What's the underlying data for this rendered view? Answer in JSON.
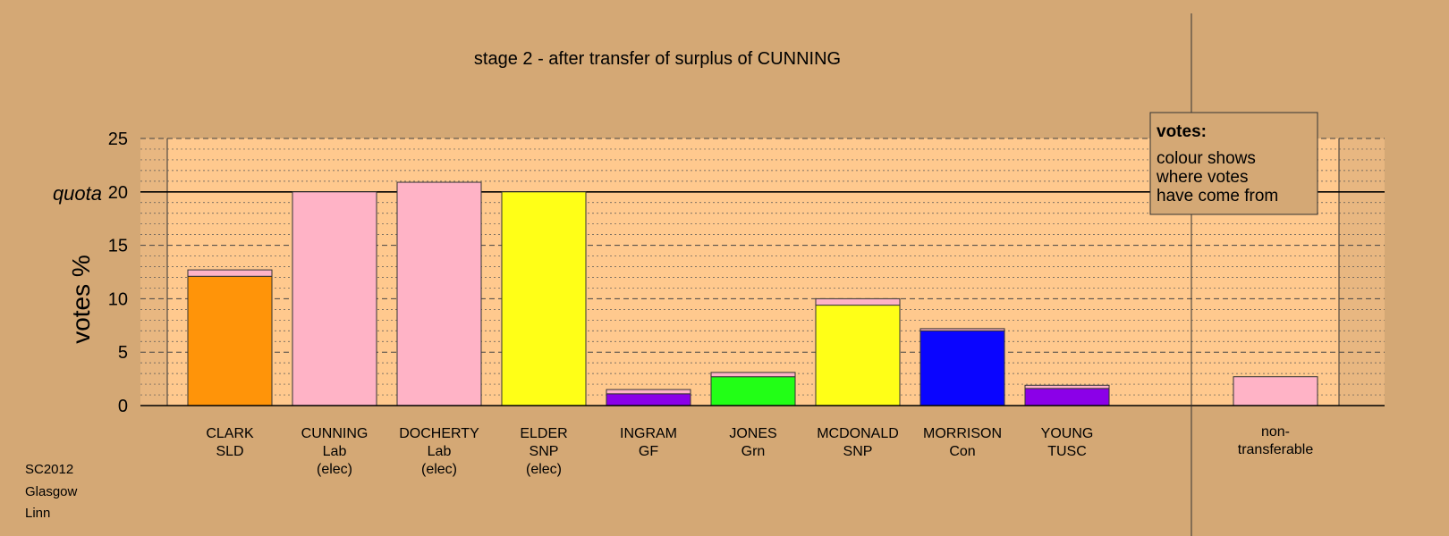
{
  "chart_data": {
    "type": "bar",
    "title": "stage 2 - after transfer of surplus of CUNNING",
    "ylabel": "votes %",
    "ylim": [
      0,
      25
    ],
    "yticks": [
      0,
      5,
      10,
      15,
      20,
      25
    ],
    "quota": {
      "value": 20,
      "label": "quota"
    },
    "grid": true,
    "candidates": [
      {
        "name": "CLARK",
        "party": "SLD",
        "status": "",
        "segments": [
          {
            "value": 12.1,
            "color": "#ff9409"
          },
          {
            "value": 0.6,
            "color": "#ffb3c6"
          }
        ]
      },
      {
        "name": "CUNNING",
        "party": "Lab",
        "status": "(elec)",
        "segments": [
          {
            "value": 20.0,
            "color": "#ffb3c6"
          }
        ]
      },
      {
        "name": "DOCHERTY",
        "party": "Lab",
        "status": "(elec)",
        "segments": [
          {
            "value": 20.9,
            "color": "#ffb3c6"
          }
        ]
      },
      {
        "name": "ELDER",
        "party": "SNP",
        "status": "(elec)",
        "segments": [
          {
            "value": 20.0,
            "color": "#ffff17"
          }
        ]
      },
      {
        "name": "INGRAM",
        "party": "GF",
        "status": "",
        "segments": [
          {
            "value": 1.1,
            "color": "#8b00e8"
          },
          {
            "value": 0.4,
            "color": "#ffb3c6"
          }
        ]
      },
      {
        "name": "JONES",
        "party": "Grn",
        "status": "",
        "segments": [
          {
            "value": 2.7,
            "color": "#22ff16"
          },
          {
            "value": 0.4,
            "color": "#ffb3c6"
          }
        ]
      },
      {
        "name": "MCDONALD",
        "party": "SNP",
        "status": "",
        "segments": [
          {
            "value": 9.4,
            "color": "#ffff17"
          },
          {
            "value": 0.6,
            "color": "#ffb3c6"
          }
        ]
      },
      {
        "name": "MORRISON",
        "party": "Con",
        "status": "",
        "segments": [
          {
            "value": 7.0,
            "color": "#0a05ff"
          },
          {
            "value": 0.2,
            "color": "#ffb3c6"
          }
        ]
      },
      {
        "name": "YOUNG",
        "party": "TUSC",
        "status": "",
        "segments": [
          {
            "value": 1.6,
            "color": "#8b00e8"
          },
          {
            "value": 0.3,
            "color": "#ffb3c6"
          }
        ]
      }
    ],
    "nontransferable": {
      "label_line1": "non-",
      "label_line2": "transferable",
      "value": 2.7,
      "color": "#ffb3c6"
    },
    "legend": {
      "title": "votes:",
      "lines": [
        "colour shows",
        "where votes",
        "have come from"
      ],
      "placement": "top-right"
    }
  },
  "footer": {
    "lines": [
      "SC2012",
      "Glasgow",
      "Linn"
    ]
  },
  "colors": {
    "page_background": "#d4a875",
    "plot_background": "#ffc98e",
    "side_shade": "#e8b781"
  }
}
